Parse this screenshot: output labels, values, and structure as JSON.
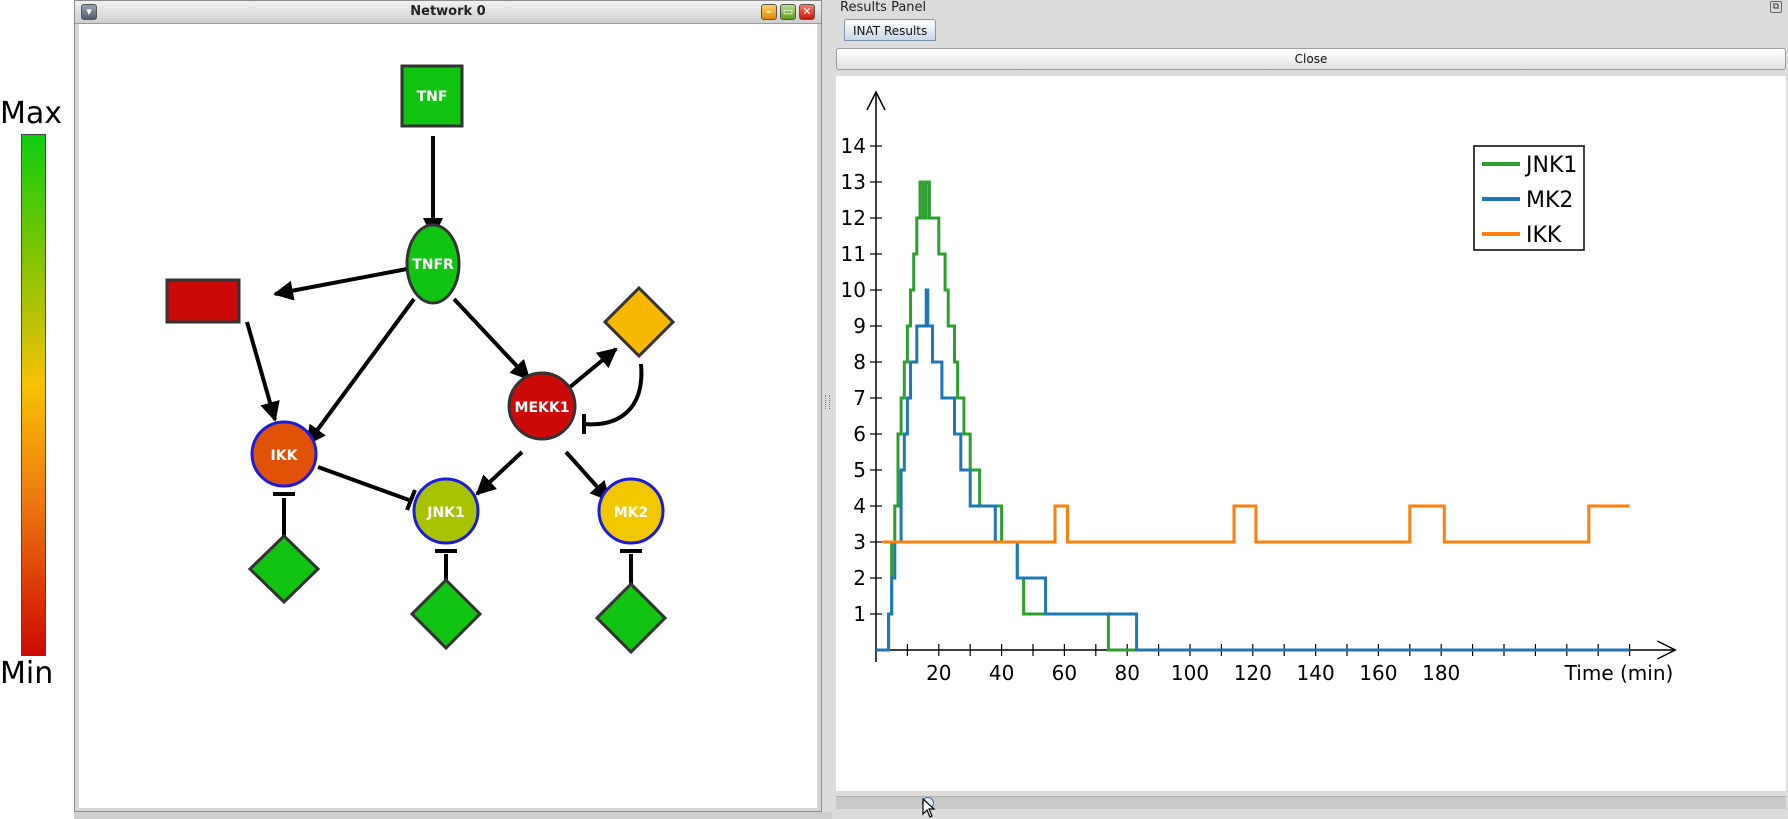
{
  "legend": {
    "max_label": "Max",
    "min_label": "Min",
    "gradient_colors": [
      "#11cc11",
      "#88c400",
      "#f7c200",
      "#ee7a12",
      "#cc0a00"
    ]
  },
  "network_window": {
    "title": "Network 0",
    "buttons": {
      "menu_icon": "menu-triangle-icon",
      "minimize_icon": "minimize-icon",
      "maximize_icon": "maximize-icon",
      "close_icon": "close-icon"
    },
    "nodes": [
      {
        "id": "tnf",
        "label": "TNF",
        "shape": "square",
        "color": "#11c411",
        "border": "#333333"
      },
      {
        "id": "tnfr",
        "label": "TNFR",
        "shape": "ellipse",
        "color": "#11c411",
        "border": "#333333"
      },
      {
        "id": "red-rect",
        "label": "",
        "shape": "rectangle",
        "color": "#cc0a0a",
        "border": "#333333"
      },
      {
        "id": "orange-diamond",
        "label": "",
        "shape": "diamond",
        "color": "#f7b900",
        "border": "#333333"
      },
      {
        "id": "mekk1",
        "label": "MEKK1",
        "shape": "circle",
        "color": "#cc0a0a",
        "border": "#333333"
      },
      {
        "id": "ikk",
        "label": "IKK",
        "shape": "circle",
        "color": "#e05208",
        "border": "#1b1bde"
      },
      {
        "id": "jnk1",
        "label": "JNK1",
        "shape": "circle",
        "color": "#a8c400",
        "border": "#1b1bde"
      },
      {
        "id": "mk2",
        "label": "MK2",
        "shape": "circle",
        "color": "#f1c800",
        "border": "#1b1bde"
      },
      {
        "id": "ikk-diamond",
        "label": "",
        "shape": "diamond",
        "color": "#11c411",
        "border": "#333333"
      },
      {
        "id": "jnk1-diamond",
        "label": "",
        "shape": "diamond",
        "color": "#11c411",
        "border": "#333333"
      },
      {
        "id": "mk2-diamond",
        "label": "",
        "shape": "diamond",
        "color": "#11c411",
        "border": "#333333"
      }
    ]
  },
  "results_panel": {
    "title": "Results Panel",
    "tab_label": "INAT Results",
    "close_label": "Close",
    "float_icon": "float-panel-icon"
  },
  "chart_data": {
    "type": "line",
    "title": "",
    "xlabel": "Time (min)",
    "ylabel": "",
    "xlim": [
      0,
      245
    ],
    "ylim": [
      0,
      15
    ],
    "x_ticks": [
      20,
      40,
      60,
      80,
      100,
      120,
      140,
      160,
      180
    ],
    "y_ticks": [
      1,
      2,
      3,
      4,
      5,
      6,
      7,
      8,
      9,
      10,
      11,
      12,
      13,
      14
    ],
    "grid": false,
    "legend_position": "top-right",
    "series": [
      {
        "name": "JNK1",
        "color": "#2ca02c",
        "step": true,
        "points": [
          [
            0,
            0
          ],
          [
            4,
            0
          ],
          [
            4,
            1
          ],
          [
            5,
            1
          ],
          [
            5,
            3
          ],
          [
            6,
            3
          ],
          [
            6,
            4
          ],
          [
            7,
            4
          ],
          [
            7,
            6
          ],
          [
            8,
            6
          ],
          [
            8,
            7
          ],
          [
            9,
            7
          ],
          [
            9,
            8
          ],
          [
            10,
            8
          ],
          [
            10,
            9
          ],
          [
            11,
            9
          ],
          [
            11,
            10
          ],
          [
            12,
            10
          ],
          [
            12,
            11
          ],
          [
            13,
            11
          ],
          [
            13,
            12
          ],
          [
            14,
            12
          ],
          [
            14,
            13
          ],
          [
            15,
            13
          ],
          [
            15,
            12
          ],
          [
            16,
            12
          ],
          [
            16,
            13
          ],
          [
            17,
            13
          ],
          [
            17,
            12
          ],
          [
            20,
            12
          ],
          [
            20,
            11
          ],
          [
            22,
            11
          ],
          [
            22,
            10
          ],
          [
            23,
            10
          ],
          [
            23,
            9
          ],
          [
            25,
            9
          ],
          [
            25,
            8
          ],
          [
            26,
            8
          ],
          [
            26,
            7
          ],
          [
            28,
            7
          ],
          [
            28,
            6
          ],
          [
            30,
            6
          ],
          [
            30,
            5
          ],
          [
            33,
            5
          ],
          [
            33,
            4
          ],
          [
            40,
            4
          ],
          [
            40,
            3
          ],
          [
            45,
            3
          ],
          [
            45,
            2
          ],
          [
            47,
            2
          ],
          [
            47,
            1
          ],
          [
            74,
            1
          ],
          [
            74,
            0
          ],
          [
            240,
            0
          ]
        ]
      },
      {
        "name": "MK2",
        "color": "#1f77b4",
        "step": true,
        "points": [
          [
            0,
            0
          ],
          [
            4,
            0
          ],
          [
            4,
            1
          ],
          [
            5,
            1
          ],
          [
            5,
            2
          ],
          [
            6,
            2
          ],
          [
            6,
            3
          ],
          [
            8,
            3
          ],
          [
            8,
            5
          ],
          [
            9,
            5
          ],
          [
            9,
            6
          ],
          [
            10,
            6
          ],
          [
            10,
            7
          ],
          [
            11,
            7
          ],
          [
            11,
            8
          ],
          [
            13,
            8
          ],
          [
            13,
            9
          ],
          [
            16,
            9
          ],
          [
            16,
            10
          ],
          [
            16.5,
            10
          ],
          [
            16.5,
            9
          ],
          [
            18,
            9
          ],
          [
            18,
            8
          ],
          [
            21,
            8
          ],
          [
            21,
            7
          ],
          [
            25,
            7
          ],
          [
            25,
            6
          ],
          [
            27,
            6
          ],
          [
            27,
            5
          ],
          [
            30,
            5
          ],
          [
            30,
            4
          ],
          [
            38,
            4
          ],
          [
            38,
            3
          ],
          [
            45,
            3
          ],
          [
            45,
            2
          ],
          [
            54,
            2
          ],
          [
            54,
            1
          ],
          [
            83,
            1
          ],
          [
            83,
            0
          ],
          [
            240,
            0
          ]
        ]
      },
      {
        "name": "IKK",
        "color": "#ff7f0e",
        "step": true,
        "points": [
          [
            2,
            3
          ],
          [
            57,
            3
          ],
          [
            57,
            4
          ],
          [
            61,
            4
          ],
          [
            61,
            3
          ],
          [
            114,
            3
          ],
          [
            114,
            4
          ],
          [
            121,
            4
          ],
          [
            121,
            3
          ],
          [
            170,
            3
          ],
          [
            170,
            4
          ],
          [
            181,
            4
          ],
          [
            181,
            3
          ],
          [
            227,
            3
          ],
          [
            227,
            4
          ],
          [
            240,
            4
          ]
        ]
      }
    ]
  }
}
